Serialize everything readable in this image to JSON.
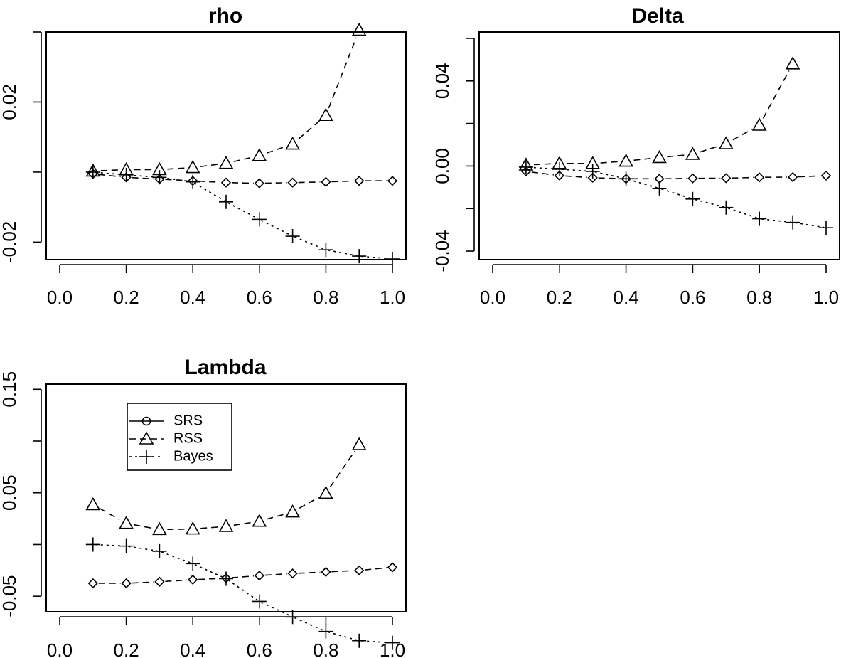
{
  "chart_data": [
    {
      "type": "line",
      "title": "rho",
      "xlabel": "",
      "ylabel": "",
      "x": [
        0.1,
        0.2,
        0.3,
        0.4,
        0.5,
        0.6,
        0.7,
        0.8,
        0.9,
        1.0
      ],
      "xlim": [
        0.0,
        1.0
      ],
      "ylim": [
        -0.025,
        0.04
      ],
      "x_ticks": [
        "0.0",
        "0.2",
        "0.4",
        "0.6",
        "0.8",
        "1.0"
      ],
      "y_ticks": [
        "-0.02",
        "0.02"
      ],
      "series": [
        {
          "name": "SRS",
          "line": "dashed",
          "marker": "diamond",
          "values": [
            -0.0005,
            -0.0015,
            -0.002,
            -0.0025,
            -0.003,
            -0.0032,
            -0.003,
            -0.0028,
            -0.0025,
            -0.0025
          ]
        },
        {
          "name": "RSS",
          "line": "dashed",
          "marker": "triangle",
          "values": [
            0.0003,
            0.0007,
            0.0007,
            0.0013,
            0.0025,
            0.0047,
            0.008,
            0.0162,
            0.0405,
            null
          ]
        },
        {
          "name": "Bayes",
          "line": "dotted",
          "marker": "plus",
          "values": [
            0.0,
            -0.0008,
            -0.0015,
            -0.0028,
            -0.0085,
            -0.0135,
            -0.0183,
            -0.0222,
            -0.024,
            -0.0248
          ]
        }
      ]
    },
    {
      "type": "line",
      "title": "Delta",
      "xlabel": "",
      "ylabel": "",
      "x": [
        0.1,
        0.2,
        0.3,
        0.4,
        0.5,
        0.6,
        0.7,
        0.8,
        0.9,
        1.0
      ],
      "xlim": [
        0.0,
        1.0
      ],
      "ylim": [
        -0.044,
        0.063
      ],
      "x_ticks": [
        "0.0",
        "0.2",
        "0.4",
        "0.6",
        "0.8",
        "1.0"
      ],
      "y_ticks": [
        "-0.04",
        "0.00",
        "0.04"
      ],
      "series": [
        {
          "name": "SRS",
          "line": "dashed",
          "marker": "diamond",
          "values": [
            -0.0025,
            -0.0045,
            -0.0055,
            -0.006,
            -0.006,
            -0.0058,
            -0.0057,
            -0.0053,
            -0.0052,
            -0.0045
          ]
        },
        {
          "name": "RSS",
          "line": "dashed",
          "marker": "triangle",
          "values": [
            0.0005,
            0.0012,
            0.0012,
            0.0023,
            0.004,
            0.0055,
            0.0105,
            0.0192,
            0.048,
            null
          ]
        },
        {
          "name": "Bayes",
          "line": "dotted",
          "marker": "plus",
          "values": [
            -0.0005,
            -0.0015,
            -0.0025,
            -0.006,
            -0.0105,
            -0.0155,
            -0.0195,
            -0.0248,
            -0.0265,
            -0.029
          ]
        }
      ]
    },
    {
      "type": "line",
      "title": "Lambda",
      "xlabel": "",
      "ylabel": "",
      "x": [
        0.1,
        0.2,
        0.3,
        0.4,
        0.5,
        0.6,
        0.7,
        0.8,
        0.9,
        1.0
      ],
      "xlim": [
        0.0,
        1.0
      ],
      "ylim": [
        -0.065,
        0.155
      ],
      "x_ticks": [
        "0.0",
        "0.2",
        "0.4",
        "0.6",
        "0.8",
        "1.0"
      ],
      "y_ticks": [
        "-0.05",
        "0.05",
        "0.15"
      ],
      "legend": {
        "position": "top-left",
        "entries": [
          {
            "label": "SRS",
            "line": "solid",
            "marker": "circle"
          },
          {
            "label": "RSS",
            "line": "dashed",
            "marker": "triangle"
          },
          {
            "label": "Bayes",
            "line": "dotted",
            "marker": "plus"
          }
        ]
      },
      "series": [
        {
          "name": "SRS",
          "line": "dashed",
          "marker": "diamond",
          "values": [
            -0.0375,
            -0.0375,
            -0.036,
            -0.034,
            -0.0325,
            -0.03,
            -0.028,
            -0.0265,
            -0.025,
            -0.022
          ]
        },
        {
          "name": "RSS",
          "line": "dashed",
          "marker": "triangle",
          "values": [
            0.0385,
            0.0205,
            0.0145,
            0.015,
            0.0175,
            0.0225,
            0.0315,
            0.0495,
            0.0965,
            null
          ]
        },
        {
          "name": "Bayes",
          "line": "dotted",
          "marker": "plus",
          "values": [
            0.0,
            -0.0015,
            -0.0065,
            -0.0185,
            -0.033,
            -0.055,
            -0.07,
            -0.084,
            -0.093,
            -0.095
          ]
        }
      ]
    }
  ]
}
